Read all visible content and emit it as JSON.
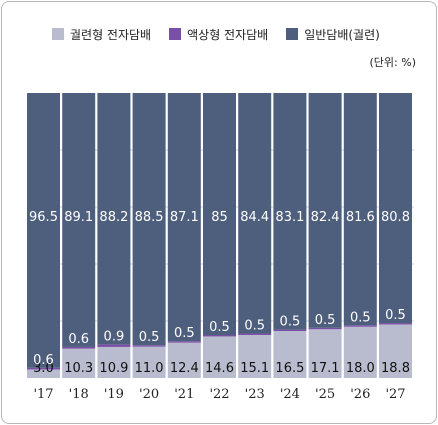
{
  "legend": [
    {
      "label": "궐련형 전자담배",
      "color": "#b9bccf"
    },
    {
      "label": "액상형 전자담배",
      "color": "#7a4fa6"
    },
    {
      "label": "일반담배(궐련)",
      "color": "#4e5e7d"
    }
  ],
  "unit_label": "(단위: %)",
  "chart_data": {
    "type": "bar",
    "stacked": true,
    "ylim": [
      0,
      100
    ],
    "categories": [
      "'17",
      "'18",
      "'19",
      "'20",
      "'21",
      "'22",
      "'23",
      "'24",
      "'25",
      "'26",
      "'27"
    ],
    "series": [
      {
        "name": "궐련형 전자담배",
        "color": "#b9bccf",
        "values": [
          3.0,
          10.3,
          10.9,
          11.0,
          12.4,
          14.6,
          15.1,
          16.5,
          17.1,
          18.0,
          18.8
        ],
        "labels": [
          "3.0",
          "10.3",
          "10.9",
          "11.0",
          "12.4",
          "14.6",
          "15.1",
          "16.5",
          "17.1",
          "18.0",
          "18.8"
        ]
      },
      {
        "name": "액상형 전자담배",
        "color": "#7a4fa6",
        "values": [
          0.6,
          0.6,
          0.9,
          0.5,
          0.5,
          0.5,
          0.5,
          0.5,
          0.5,
          0.5,
          0.5
        ],
        "labels": [
          "0.6",
          "0.6",
          "0.9",
          "0.5",
          "0.5",
          "0.5",
          "0.5",
          "0.5",
          "0.5",
          "0.5",
          "0.5"
        ]
      },
      {
        "name": "일반담배(궐련)",
        "color": "#4e5e7d",
        "values": [
          96.5,
          89.1,
          88.2,
          88.5,
          87.1,
          85,
          84.4,
          83.1,
          82.4,
          81.6,
          80.8
        ],
        "labels": [
          "96.5",
          "89.1",
          "88.2",
          "88.5",
          "87.1",
          "85",
          "84.4",
          "83.1",
          "82.4",
          "81.6",
          "80.8"
        ]
      }
    ]
  }
}
